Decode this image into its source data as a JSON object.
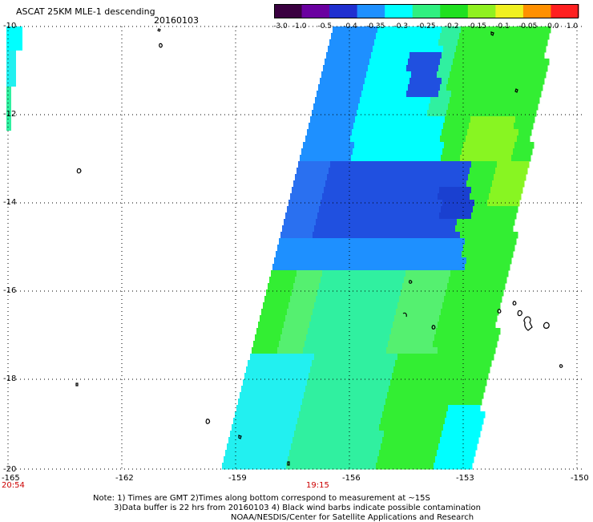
{
  "header": {
    "title": "ASCAT 25KM MLE-1 descending",
    "date": "20160103"
  },
  "colorbar": {
    "ticks": [
      "-3.0",
      "-1.0",
      "-0.5",
      "-0.4",
      "-0.35",
      "-0.3",
      "-0.25",
      "-0.2",
      "-0.15",
      "-0.1",
      "-0.05",
      "0.0",
      "1.0"
    ],
    "colors": [
      "#3a0040",
      "#6a00a0",
      "#2030d0",
      "#1e90ff",
      "#00ffff",
      "#30f080",
      "#20e020",
      "#90f020",
      "#f0f020",
      "#ff9000",
      "#ff2020"
    ]
  },
  "map": {
    "lat_labels": [
      "-10",
      "-12",
      "-14",
      "-16",
      "-18",
      "-20"
    ],
    "lon_labels": [
      "-165",
      "-162",
      "-159",
      "-156",
      "-153",
      "-150"
    ],
    "times": {
      "left": "20:54",
      "center": "19:15",
      "color": "#cc0000"
    },
    "grid": "dotted"
  },
  "footer": {
    "line1": "Note: 1) Times are GMT 2)Times along bottom correspond to measurement at ~15S",
    "line2": "3)Data buffer is 22 hrs from 20160103 4) Black wind barbs indicate possible contamination",
    "line3": "NOAA/NESDIS/Center for Satellite Applications and Research"
  }
}
